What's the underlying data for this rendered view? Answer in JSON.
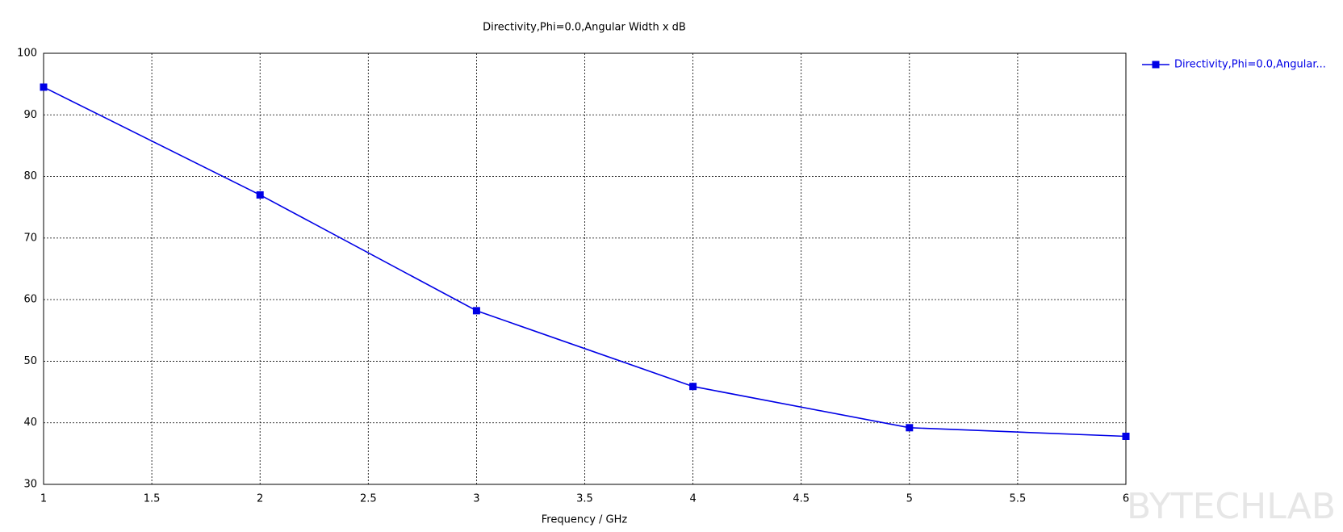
{
  "chart_data": {
    "type": "line",
    "title": "Directivity,Phi=0.0,Angular Width x dB",
    "x_label": "Frequency / GHz",
    "x": [
      1,
      2,
      3,
      4,
      5,
      6
    ],
    "series": [
      {
        "name": "Directivity,Phi=0.0,Angular...",
        "color": "#0000e6",
        "values": [
          94.5,
          77,
          58.2,
          45.9,
          39.2,
          37.8
        ]
      }
    ],
    "xlim": [
      1,
      6
    ],
    "xticks": [
      1,
      1.5,
      2,
      2.5,
      3,
      3.5,
      4,
      4.5,
      5,
      5.5,
      6
    ],
    "ylim": [
      30,
      100
    ],
    "yticks": [
      30,
      40,
      50,
      60,
      70,
      80,
      90,
      100
    ],
    "grid": true,
    "legend": "right",
    "watermark": "BYTECHLAB"
  }
}
